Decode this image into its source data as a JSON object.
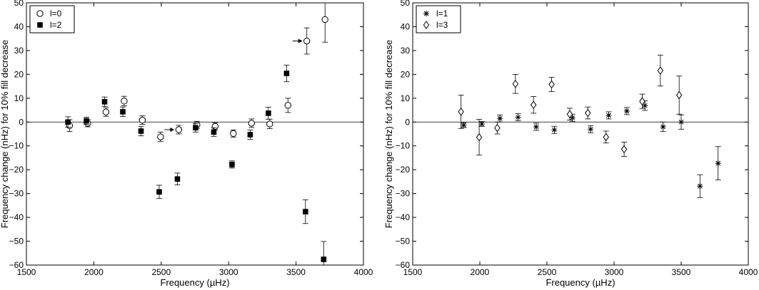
{
  "chart_data": [
    {
      "type": "scatter",
      "xlabel": "Frequency (µHz)",
      "ylabel": "Frequency change (nHz) for 10% fill decrease",
      "xlim": [
        1500,
        4000
      ],
      "ylim": [
        -60,
        50
      ],
      "xticks": [
        "1500",
        "2000",
        "2500",
        "3000",
        "3500",
        "4000"
      ],
      "yticks": [
        "50",
        "40",
        "30",
        "20",
        "10",
        "0",
        "−10",
        "−20",
        "−30",
        "−40",
        "−50",
        "−60"
      ],
      "legend_position": "top-left",
      "zero_line": true,
      "series": [
        {
          "name": "l=0",
          "marker": "open-circle",
          "points": [
            {
              "x": 1820,
              "y": -1.5,
              "err": 2.5
            },
            {
              "x": 1955,
              "y": -0.5,
              "err": 1.5
            },
            {
              "x": 2090,
              "y": 4.2,
              "err": 1.8
            },
            {
              "x": 2225,
              "y": 8.8,
              "err": 2.0
            },
            {
              "x": 2360,
              "y": 0.8,
              "err": 1.8
            },
            {
              "x": 2495,
              "y": -6.2,
              "err": 2.0
            },
            {
              "x": 2630,
              "y": -3.2,
              "err": 1.8
            },
            {
              "x": 2765,
              "y": -1.2,
              "err": 1.5
            },
            {
              "x": 2900,
              "y": -1.8,
              "err": 1.5
            },
            {
              "x": 3035,
              "y": -4.8,
              "err": 1.5
            },
            {
              "x": 3170,
              "y": -0.5,
              "err": 1.8
            },
            {
              "x": 3305,
              "y": -0.8,
              "err": 2.0
            },
            {
              "x": 3440,
              "y": 7.0,
              "err": 3.0
            },
            {
              "x": 3580,
              "y": 34.0,
              "err": 5.5
            },
            {
              "x": 3715,
              "y": 43.0,
              "err": 9.5
            }
          ]
        },
        {
          "name": "l=2",
          "marker": "filled-square",
          "points": [
            {
              "x": 1808,
              "y": 0.0,
              "err": 2.2
            },
            {
              "x": 1945,
              "y": 0.5,
              "err": 1.5
            },
            {
              "x": 2080,
              "y": 8.5,
              "err": 2.0
            },
            {
              "x": 2215,
              "y": 4.3,
              "err": 2.0
            },
            {
              "x": 2350,
              "y": -3.8,
              "err": 2.0
            },
            {
              "x": 2485,
              "y": -29.3,
              "err": 2.8
            },
            {
              "x": 2620,
              "y": -23.9,
              "err": 2.5
            },
            {
              "x": 2755,
              "y": -2.4,
              "err": 1.8
            },
            {
              "x": 2890,
              "y": -4.2,
              "err": 1.8
            },
            {
              "x": 3025,
              "y": -17.8,
              "err": 1.5
            },
            {
              "x": 3160,
              "y": -5.3,
              "err": 2.0
            },
            {
              "x": 3295,
              "y": 3.7,
              "err": 2.5
            },
            {
              "x": 3430,
              "y": 20.4,
              "err": 3.5
            },
            {
              "x": 3570,
              "y": -37.6,
              "err": 5.0
            },
            {
              "x": 3705,
              "y": -57.6,
              "err": 7.5
            }
          ]
        }
      ],
      "annotations": [
        {
          "type": "arrow",
          "target": {
            "x": 3575,
            "y": 34.0
          }
        },
        {
          "type": "arrow",
          "target": {
            "x": 2625,
            "y": -3.2
          }
        }
      ]
    },
    {
      "type": "scatter",
      "xlabel": "Frequency (µHz)",
      "ylabel": "Frequency change (nHz) for 10% fill decrease",
      "xlim": [
        1500,
        4000
      ],
      "ylim": [
        -60,
        50
      ],
      "xticks": [
        "1500",
        "2000",
        "2500",
        "3000",
        "3500",
        "4000"
      ],
      "yticks": [
        "50",
        "40",
        "30",
        "20",
        "10",
        "0",
        "−10",
        "−20",
        "−30",
        "−40",
        "−50",
        "−60"
      ],
      "legend_position": "top-left",
      "zero_line": true,
      "series": [
        {
          "name": "l=1",
          "marker": "asterisk",
          "points": [
            {
              "x": 1880,
              "y": -1.3,
              "err": 1.0
            },
            {
              "x": 2015,
              "y": -0.8,
              "err": 1.0
            },
            {
              "x": 2150,
              "y": 1.5,
              "err": 1.5
            },
            {
              "x": 2285,
              "y": 2.0,
              "err": 1.5
            },
            {
              "x": 2420,
              "y": -2.0,
              "err": 1.5
            },
            {
              "x": 2555,
              "y": -3.3,
              "err": 1.5
            },
            {
              "x": 2690,
              "y": 1.8,
              "err": 1.5
            },
            {
              "x": 2825,
              "y": -3.0,
              "err": 1.5
            },
            {
              "x": 2960,
              "y": 2.8,
              "err": 1.5
            },
            {
              "x": 3095,
              "y": 4.6,
              "err": 1.5
            },
            {
              "x": 3230,
              "y": 6.9,
              "err": 2.0
            },
            {
              "x": 3365,
              "y": -2.0,
              "err": 2.0
            },
            {
              "x": 3500,
              "y": 0.0,
              "err": 3.0
            },
            {
              "x": 3640,
              "y": -26.9,
              "err": 4.8
            },
            {
              "x": 3775,
              "y": -17.3,
              "err": 7.0
            }
          ]
        },
        {
          "name": "l=3",
          "marker": "open-diamond",
          "points": [
            {
              "x": 1860,
              "y": 4.3,
              "err": 7.0
            },
            {
              "x": 1995,
              "y": -6.4,
              "err": 7.5
            },
            {
              "x": 2130,
              "y": -2.5,
              "err": 2.5
            },
            {
              "x": 2265,
              "y": 16.0,
              "err": 4.0
            },
            {
              "x": 2400,
              "y": 7.2,
              "err": 3.5
            },
            {
              "x": 2535,
              "y": 15.8,
              "err": 3.0
            },
            {
              "x": 2670,
              "y": 3.3,
              "err": 2.5
            },
            {
              "x": 2805,
              "y": 3.8,
              "err": 2.5
            },
            {
              "x": 2940,
              "y": -6.3,
              "err": 2.5
            },
            {
              "x": 3075,
              "y": -11.4,
              "err": 3.0
            },
            {
              "x": 3210,
              "y": 8.7,
              "err": 3.0
            },
            {
              "x": 3345,
              "y": 21.6,
              "err": 6.5
            },
            {
              "x": 3485,
              "y": 11.3,
              "err": 8.0
            }
          ]
        }
      ]
    }
  ]
}
